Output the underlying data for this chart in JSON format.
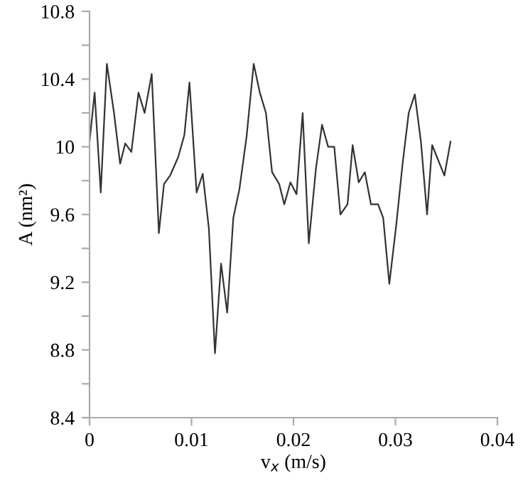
{
  "chart_data": {
    "type": "line",
    "xlabel": "v$_{x}$ (m/s)",
    "ylabel": "A (nm²)",
    "color": "#333333",
    "marker": "none",
    "line_style": "solid",
    "grid": false,
    "x": [
      0,
      0.0005,
      0.0011,
      0.0017,
      0.0024,
      0.003,
      0.0035,
      0.0041,
      0.0048,
      0.0054,
      0.0061,
      0.0068,
      0.0073,
      0.0079,
      0.0087,
      0.0093,
      0.0098,
      0.0105,
      0.0111,
      0.0117,
      0.0123,
      0.0129,
      0.0135,
      0.0141,
      0.0147,
      0.0154,
      0.0161,
      0.0167,
      0.0173,
      0.0179,
      0.0186,
      0.0191,
      0.0197,
      0.0203,
      0.0209,
      0.0215,
      0.0222,
      0.0228,
      0.0234,
      0.024,
      0.0246,
      0.0253,
      0.0258,
      0.0264,
      0.027,
      0.0276,
      0.0283,
      0.0288,
      0.0294,
      0.0301,
      0.0307,
      0.0313,
      0.0319,
      0.0325,
      0.0331,
      0.0336,
      0.0342,
      0.0348,
      0.0354
    ],
    "values": [
      10.03,
      10.32,
      9.73,
      10.49,
      10.2,
      9.9,
      10.02,
      9.97,
      10.32,
      10.2,
      10.43,
      9.49,
      9.78,
      9.83,
      9.94,
      10.07,
      10.38,
      9.73,
      9.84,
      9.52,
      8.78,
      9.31,
      9.02,
      9.58,
      9.75,
      10.06,
      10.49,
      10.32,
      10.2,
      9.85,
      9.78,
      9.66,
      9.79,
      9.72,
      10.2,
      9.43,
      9.87,
      10.13,
      10.0,
      10.0,
      9.6,
      9.66,
      10.01,
      9.79,
      9.85,
      9.66,
      9.66,
      9.58,
      9.19,
      9.55,
      9.9,
      10.2,
      10.31,
      10.03,
      9.6,
      10.01,
      9.92,
      9.83,
      10.03
    ],
    "xlim": [
      0,
      0.04
    ],
    "xticks": [
      0,
      0.01,
      0.02,
      0.03,
      0.04
    ],
    "ylim": [
      8.4,
      10.8
    ],
    "yticks": [
      8.4,
      {
        "value": 8.6,
        "label": null
      },
      8.8,
      {
        "value": 9.0,
        "label": null
      },
      9.2,
      {
        "value": 9.4,
        "label": null
      },
      9.6,
      {
        "value": 9.8,
        "label": null
      },
      10,
      {
        "value": 10.2,
        "label": null
      },
      10.4,
      {
        "value": 10.6,
        "label": null
      },
      10.8
    ]
  }
}
